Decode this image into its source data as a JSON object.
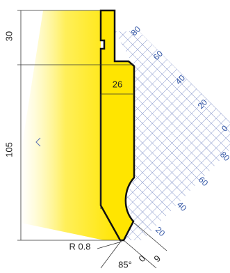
{
  "dimensions": {
    "top_height": "30",
    "body_height": "105",
    "width": "26",
    "tip_radius": "R 0.8",
    "angle": "85°",
    "offset": "0",
    "tip_width": "9"
  },
  "scale_upper": [
    "80",
    "60",
    "40",
    "20",
    "0"
  ],
  "scale_lower": [
    "80",
    "60",
    "40",
    "20"
  ]
}
